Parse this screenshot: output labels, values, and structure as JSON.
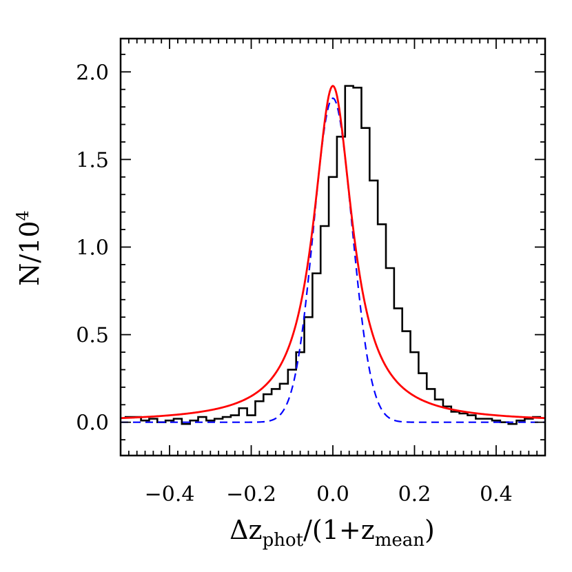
{
  "chart_data": {
    "type": "line",
    "xlabel": {
      "prefix": "Δz",
      "sub1": "phot",
      "middle": "/(1+z",
      "sub2": "mean",
      "suffix": ")"
    },
    "ylabel": {
      "base": "N/10",
      "sup": "4"
    },
    "xlim": [
      -0.52,
      0.52
    ],
    "ylim": [
      -0.19,
      2.19
    ],
    "xticks": [
      -0.4,
      -0.2,
      0.0,
      0.2,
      0.4
    ],
    "xtick_labels": [
      "−0.4",
      "−0.2",
      "0.0",
      "0.2",
      "0.4"
    ],
    "yticks": [
      0.0,
      0.5,
      1.0,
      1.5,
      2.0
    ],
    "ytick_labels": [
      "0.0",
      "0.5",
      "1.0",
      "1.5",
      "2.0"
    ],
    "grid": false,
    "series": [
      {
        "style": "histogram-step",
        "color": "#000000",
        "bin_width": 0.02,
        "x_start": -0.51,
        "values": [
          0.03,
          0.03,
          0.01,
          0.02,
          0.0,
          0.01,
          0.02,
          -0.01,
          0.01,
          0.03,
          0.01,
          0.02,
          0.03,
          0.04,
          0.08,
          0.04,
          0.12,
          0.16,
          0.19,
          0.22,
          0.3,
          0.4,
          0.6,
          0.85,
          1.12,
          1.4,
          1.63,
          1.92,
          1.91,
          1.68,
          1.38,
          1.13,
          0.88,
          0.65,
          0.52,
          0.4,
          0.28,
          0.19,
          0.13,
          0.09,
          0.06,
          0.05,
          0.04,
          0.02,
          0.02,
          0.01,
          0.0,
          -0.01,
          0.01,
          0.02,
          0.03
        ]
      },
      {
        "style": "dashed",
        "color": "#0000ff",
        "model": "gaussian",
        "amplitude": 1.85,
        "sigma": 0.047
      },
      {
        "style": "solid",
        "color": "#ff0000",
        "model": "lorentzian",
        "amplitude": 1.92,
        "hwhm": 0.058
      }
    ]
  }
}
